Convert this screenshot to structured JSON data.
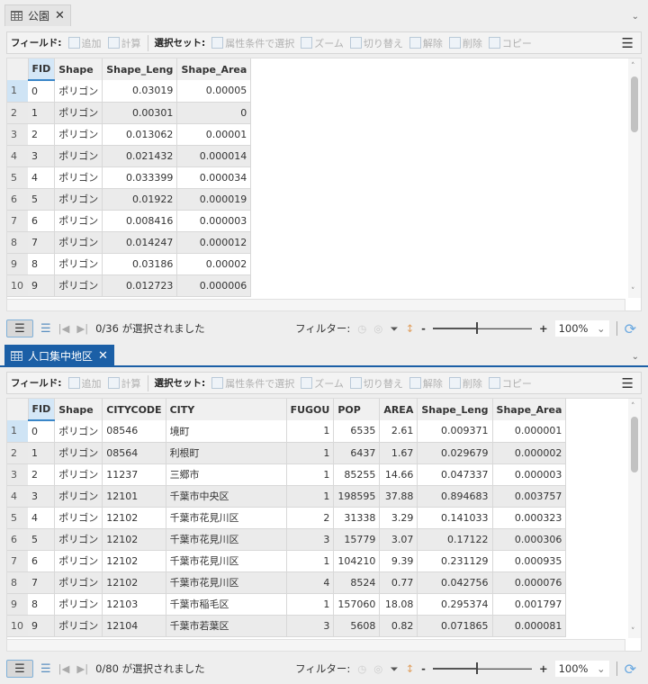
{
  "panels": [
    {
      "tab_title": "公園",
      "toolbar": {
        "fields_label": "フィールド:",
        "add": "追加",
        "calculate": "計算",
        "selection_label": "選択セット:",
        "select_by_attr": "属性条件で選択",
        "zoom": "ズーム",
        "switch": "切り替え",
        "clear": "解除",
        "delete": "削除",
        "copy": "コピー"
      },
      "columns": [
        "FID",
        "Shape",
        "Shape_Leng",
        "Shape_Area"
      ],
      "num_cols": [
        2,
        3
      ],
      "rows": [
        [
          "0",
          "ポリゴン",
          "0.03019",
          "0.00005"
        ],
        [
          "1",
          "ポリゴン",
          "0.00301",
          "0"
        ],
        [
          "2",
          "ポリゴン",
          "0.013062",
          "0.00001"
        ],
        [
          "3",
          "ポリゴン",
          "0.021432",
          "0.000014"
        ],
        [
          "4",
          "ポリゴン",
          "0.033399",
          "0.000034"
        ],
        [
          "5",
          "ポリゴン",
          "0.01922",
          "0.000019"
        ],
        [
          "6",
          "ポリゴン",
          "0.008416",
          "0.000003"
        ],
        [
          "7",
          "ポリゴン",
          "0.014247",
          "0.000012"
        ],
        [
          "8",
          "ポリゴン",
          "0.03186",
          "0.00002"
        ],
        [
          "9",
          "ポリゴン",
          "0.012723",
          "0.000006"
        ]
      ],
      "status": {
        "selected": "0/36 が選択されました",
        "filter_label": "フィルター:",
        "zoom": "100%"
      }
    },
    {
      "tab_title": "人口集中地区",
      "toolbar": {
        "fields_label": "フィールド:",
        "add": "追加",
        "calculate": "計算",
        "selection_label": "選択セット:",
        "select_by_attr": "属性条件で選択",
        "zoom": "ズーム",
        "switch": "切り替え",
        "clear": "解除",
        "delete": "削除",
        "copy": "コピー"
      },
      "columns": [
        "FID",
        "Shape",
        "CITYCODE",
        "CITY",
        "FUGOU",
        "POP",
        "AREA",
        "Shape_Leng",
        "Shape_Area"
      ],
      "num_cols": [
        4,
        5,
        6,
        7,
        8
      ],
      "rows": [
        [
          "0",
          "ポリゴン",
          "08546",
          "境町",
          "1",
          "6535",
          "2.61",
          "0.009371",
          "0.000001"
        ],
        [
          "1",
          "ポリゴン",
          "08564",
          "利根町",
          "1",
          "6437",
          "1.67",
          "0.029679",
          "0.000002"
        ],
        [
          "2",
          "ポリゴン",
          "11237",
          "三郷市",
          "1",
          "85255",
          "14.66",
          "0.047337",
          "0.000003"
        ],
        [
          "3",
          "ポリゴン",
          "12101",
          "千葉市中央区",
          "1",
          "198595",
          "37.88",
          "0.894683",
          "0.003757"
        ],
        [
          "4",
          "ポリゴン",
          "12102",
          "千葉市花見川区",
          "2",
          "31338",
          "3.29",
          "0.141033",
          "0.000323"
        ],
        [
          "5",
          "ポリゴン",
          "12102",
          "千葉市花見川区",
          "3",
          "15779",
          "3.07",
          "0.17122",
          "0.000306"
        ],
        [
          "6",
          "ポリゴン",
          "12102",
          "千葉市花見川区",
          "1",
          "104210",
          "9.39",
          "0.231129",
          "0.000935"
        ],
        [
          "7",
          "ポリゴン",
          "12102",
          "千葉市花見川区",
          "4",
          "8524",
          "0.77",
          "0.042756",
          "0.000076"
        ],
        [
          "8",
          "ポリゴン",
          "12103",
          "千葉市稲毛区",
          "1",
          "157060",
          "18.08",
          "0.295374",
          "0.001797"
        ],
        [
          "9",
          "ポリゴン",
          "12104",
          "千葉市若葉区",
          "3",
          "5608",
          "0.82",
          "0.071865",
          "0.000081"
        ]
      ],
      "status": {
        "selected": "0/80 が選択されました",
        "filter_label": "フィルター:",
        "zoom": "100%"
      }
    }
  ]
}
